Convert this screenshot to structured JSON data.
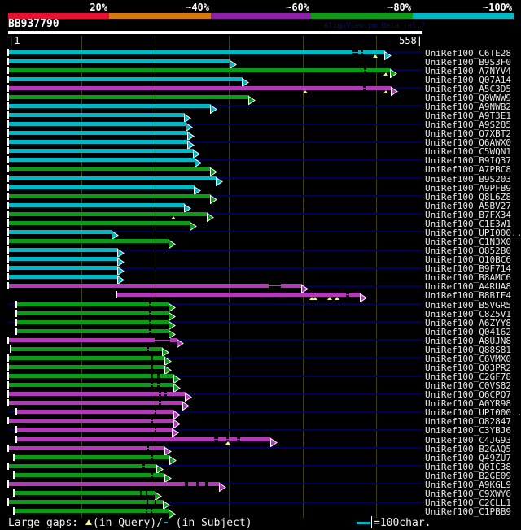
{
  "header": {
    "scale_labels": [
      "20%",
      "~40%",
      "~60%",
      "~80%",
      "~100%"
    ],
    "scale_colors": [
      "#ea1030",
      "#d7790f",
      "#8d1fa8",
      "#0d9a16",
      "#00b9c7"
    ],
    "scale_bounds": [
      10,
      134,
      259,
      382,
      507,
      631
    ],
    "query_name": "BB937790",
    "watermark": "AlignView.pm Beta rel.7",
    "left_tick_label": "|1",
    "right_tick_label": "558|"
  },
  "legend": {
    "large_gaps_prefix": "Large gaps: ",
    "query_gap_symbol": "triangle-up",
    "query_gap_text": "(in Query)/",
    "subject_gap_symbol": "-",
    "subject_gap_text": " (in Subject)",
    "scalebar_text": "=100char."
  },
  "colors": {
    "cyan": "#00b9c7",
    "green": "#0d9a16",
    "magenta": "#b23ab9",
    "row_line": "#000054",
    "grid_line": "#3f3f10",
    "gap_triangle": "#f2f28e",
    "watermark": "#10105f"
  },
  "chart_data": {
    "type": "alignment-overview",
    "x_range": [
      1,
      558
    ],
    "grid_positions": [
      100,
      200,
      300,
      400,
      500
    ],
    "rows": [
      {
        "label": "UniRef100_C6TE28",
        "color": "cyan",
        "start": 1,
        "end": 519,
        "gaps": [
          [
            468,
            7
          ],
          [
            478,
            4
          ]
        ],
        "qgaps": [
          498
        ]
      },
      {
        "label": "UniRef100_B9S3F0",
        "color": "cyan",
        "start": 1,
        "end": 310,
        "gaps": [],
        "qgaps": []
      },
      {
        "label": "UniRef100_A7NYV4",
        "color": "green",
        "start": 1,
        "end": 527,
        "gaps": [
          [
            483,
            3
          ]
        ],
        "qgaps": [
          513
        ]
      },
      {
        "label": "UniRef100_Q07A14",
        "color": "cyan",
        "start": 1,
        "end": 326,
        "gaps": [],
        "qgaps": []
      },
      {
        "label": "UniRef100_A5C3D5",
        "color": "magenta",
        "start": 1,
        "end": 528,
        "gaps": [
          [
            482,
            3
          ]
        ],
        "qgaps": [
          403,
          513
        ]
      },
      {
        "label": "UniRef100_Q0WWW9",
        "color": "green",
        "start": 1,
        "end": 335,
        "gaps": [],
        "qgaps": []
      },
      {
        "label": "UniRef100_A9NWB2",
        "color": "cyan",
        "start": 1,
        "end": 283,
        "gaps": [],
        "qgaps": []
      },
      {
        "label": "UniRef100_A9T3E1",
        "color": "cyan",
        "start": 1,
        "end": 248,
        "gaps": [],
        "qgaps": []
      },
      {
        "label": "UniRef100_A9S285",
        "color": "cyan",
        "start": 1,
        "end": 250,
        "gaps": [],
        "qgaps": []
      },
      {
        "label": "UniRef100_Q7XBT2",
        "color": "cyan",
        "start": 1,
        "end": 252,
        "gaps": [],
        "qgaps": []
      },
      {
        "label": "UniRef100_Q6AWX0",
        "color": "cyan",
        "start": 1,
        "end": 252,
        "gaps": [],
        "qgaps": []
      },
      {
        "label": "UniRef100_C5WQN1",
        "color": "cyan",
        "start": 1,
        "end": 260,
        "gaps": [],
        "qgaps": []
      },
      {
        "label": "UniRef100_B9IQ37",
        "color": "cyan",
        "start": 1,
        "end": 262,
        "gaps": [],
        "qgaps": []
      },
      {
        "label": "UniRef100_A7PBC8",
        "color": "green",
        "start": 1,
        "end": 283,
        "gaps": [],
        "qgaps": []
      },
      {
        "label": "UniRef100_B9S203",
        "color": "cyan",
        "start": 1,
        "end": 291,
        "gaps": [],
        "qgaps": []
      },
      {
        "label": "UniRef100_A9PFB9",
        "color": "cyan",
        "start": 1,
        "end": 261,
        "gaps": [],
        "qgaps": []
      },
      {
        "label": "UniRef100_Q8L6Z8",
        "color": "green",
        "start": 1,
        "end": 283,
        "gaps": [],
        "qgaps": []
      },
      {
        "label": "UniRef100_A5BV27",
        "color": "cyan",
        "start": 1,
        "end": 248,
        "gaps": [],
        "qgaps": []
      },
      {
        "label": "UniRef100_B7FX34",
        "color": "green",
        "start": 1,
        "end": 279,
        "gaps": [],
        "qgaps": [
          225
        ]
      },
      {
        "label": "UniRef100_C1E3W1",
        "color": "green",
        "start": 1,
        "end": 256,
        "gaps": [],
        "qgaps": []
      },
      {
        "label": "UniRef100_UPI000..",
        "color": "cyan",
        "start": 1,
        "end": 150,
        "gaps": [],
        "qgaps": []
      },
      {
        "label": "UniRef100_C1N3X0",
        "color": "green",
        "start": 1,
        "end": 227,
        "gaps": [],
        "qgaps": []
      },
      {
        "label": "UniRef100_Q852B0",
        "color": "cyan",
        "start": 1,
        "end": 158,
        "gaps": [],
        "qgaps": []
      },
      {
        "label": "UniRef100_Q10BC6",
        "color": "cyan",
        "start": 1,
        "end": 158,
        "gaps": [],
        "qgaps": []
      },
      {
        "label": "UniRef100_B9F714",
        "color": "cyan",
        "start": 1,
        "end": 158,
        "gaps": [],
        "qgaps": []
      },
      {
        "label": "UniRef100_B8AMC6",
        "color": "cyan",
        "start": 1,
        "end": 158,
        "gaps": [],
        "qgaps": []
      },
      {
        "label": "UniRef100_A4RUA8",
        "color": "magenta",
        "start": 1,
        "end": 407,
        "gaps": [
          [
            354,
            17
          ]
        ],
        "qgaps": []
      },
      {
        "label": "UniRef100_B8BIF4",
        "color": "magenta",
        "start": 148,
        "end": 486,
        "gaps": [
          [
            459,
            4
          ]
        ],
        "qgaps": [
          412,
          417,
          437,
          446
        ]
      },
      {
        "label": "UniRef100_B5VGR5",
        "color": "green",
        "start": 12,
        "end": 227,
        "gaps": [
          [
            192,
            3
          ]
        ],
        "qgaps": []
      },
      {
        "label": "UniRef100_C8Z5V1",
        "color": "green",
        "start": 12,
        "end": 227,
        "gaps": [
          [
            192,
            3
          ]
        ],
        "qgaps": []
      },
      {
        "label": "UniRef100_A6ZYY8",
        "color": "green",
        "start": 12,
        "end": 227,
        "gaps": [
          [
            192,
            3
          ]
        ],
        "qgaps": []
      },
      {
        "label": "UniRef100_Q04162",
        "color": "green",
        "start": 12,
        "end": 227,
        "gaps": [
          [
            192,
            3
          ]
        ],
        "qgaps": []
      },
      {
        "label": "UniRef100_A8UJN8",
        "color": "magenta",
        "start": 1,
        "end": 238,
        "gaps": [
          [
            199,
            22
          ]
        ],
        "qgaps": []
      },
      {
        "label": "UniRef100_Q88S81",
        "color": "green",
        "start": 4,
        "end": 218,
        "gaps": [
          [
            189,
            3
          ]
        ],
        "qgaps": []
      },
      {
        "label": "UniRef100_C6VMX0",
        "color": "green",
        "start": 1,
        "end": 221,
        "gaps": [
          [
            194,
            3
          ]
        ],
        "qgaps": []
      },
      {
        "label": "UniRef100_Q03PR2",
        "color": "green",
        "start": 1,
        "end": 221,
        "gaps": [
          [
            194,
            3
          ]
        ],
        "qgaps": []
      },
      {
        "label": "UniRef100_C2GF78",
        "color": "green",
        "start": 1,
        "end": 234,
        "gaps": [
          [
            194,
            3
          ],
          [
            203,
            3
          ]
        ],
        "qgaps": []
      },
      {
        "label": "UniRef100_C0VS82",
        "color": "green",
        "start": 1,
        "end": 234,
        "gaps": [
          [
            194,
            3
          ],
          [
            203,
            3
          ]
        ],
        "qgaps": []
      },
      {
        "label": "UniRef100_Q6CPQ7",
        "color": "magenta",
        "start": 1,
        "end": 249,
        "gaps": [
          [
            205,
            3
          ],
          [
            213,
            3
          ]
        ],
        "qgaps": []
      },
      {
        "label": "UniRef100_A0YR98",
        "color": "magenta",
        "start": 1,
        "end": 246,
        "gaps": [
          [
            205,
            3
          ]
        ],
        "qgaps": []
      },
      {
        "label": "UniRef100_UPI000..",
        "color": "magenta",
        "start": 12,
        "end": 234,
        "gaps": [
          [
            199,
            3
          ]
        ],
        "qgaps": []
      },
      {
        "label": "UniRef100_O82847",
        "color": "magenta",
        "start": 1,
        "end": 234,
        "gaps": [
          [
            194,
            3
          ]
        ],
        "qgaps": []
      },
      {
        "label": "UniRef100_C3YBJ6",
        "color": "magenta",
        "start": 12,
        "end": 232,
        "gaps": [
          [
            199,
            3
          ]
        ],
        "qgaps": []
      },
      {
        "label": "UniRef100_C4JG93",
        "color": "magenta",
        "start": 12,
        "end": 365,
        "gaps": [
          [
            280,
            6
          ],
          [
            296,
            4
          ],
          [
            311,
            4
          ]
        ],
        "qgaps": [
          299
        ]
      },
      {
        "label": "UniRef100_B2GAQ5",
        "color": "magenta",
        "start": 1,
        "end": 221,
        "gaps": [
          [
            189,
            3
          ]
        ],
        "qgaps": []
      },
      {
        "label": "UniRef100_Q49ZU7",
        "color": "green",
        "start": 9,
        "end": 228,
        "gaps": [
          [
            194,
            3
          ]
        ],
        "qgaps": []
      },
      {
        "label": "UniRef100_Q0IC38",
        "color": "green",
        "start": 1,
        "end": 210,
        "gaps": [
          [
            183,
            3
          ]
        ],
        "qgaps": []
      },
      {
        "label": "UniRef100_B2GE09",
        "color": "green",
        "start": 9,
        "end": 221,
        "gaps": [
          [
            194,
            3
          ]
        ],
        "qgaps": []
      },
      {
        "label": "UniRef100_A9KGL9",
        "color": "magenta",
        "start": 1,
        "end": 295,
        "gaps": [
          [
            240,
            5
          ],
          [
            256,
            3
          ],
          [
            268,
            3
          ]
        ],
        "qgaps": []
      },
      {
        "label": "UniRef100_C9XWY6",
        "color": "green",
        "start": 9,
        "end": 208,
        "gaps": [
          [
            180,
            2
          ],
          [
            187,
            2
          ]
        ],
        "qgaps": []
      },
      {
        "label": "UniRef100_C2CLL1",
        "color": "green",
        "start": 1,
        "end": 219,
        "gaps": [
          [
            189,
            2
          ],
          [
            199,
            2
          ]
        ],
        "qgaps": []
      },
      {
        "label": "UniRef100_C1PBB9",
        "color": "green",
        "start": 9,
        "end": 227,
        "gaps": [
          [
            187,
            2
          ],
          [
            194,
            2
          ]
        ],
        "qgaps": []
      }
    ]
  }
}
